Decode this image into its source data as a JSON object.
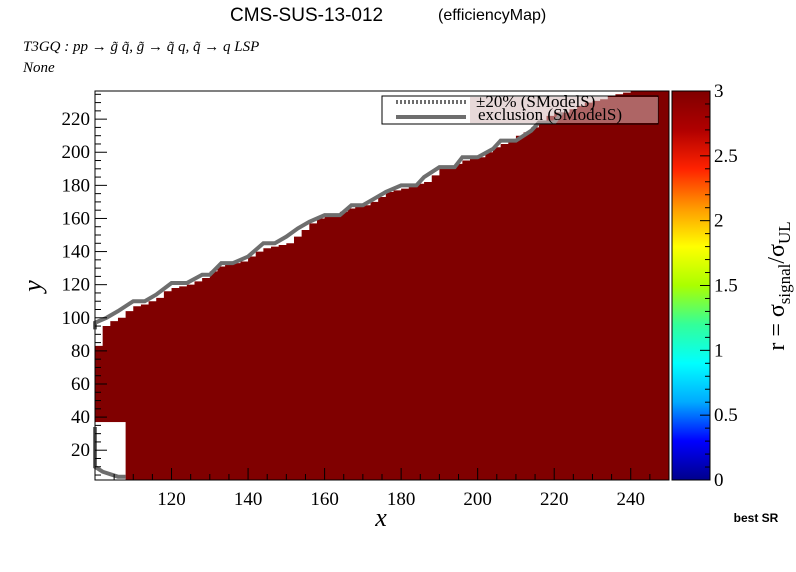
{
  "header": {
    "title": "CMS-SUS-13-012",
    "title_suffix": "(efficiencyMap)",
    "process": "T3GQ : pp  → g̃ q̃, g̃ → q̃ q, q̃ → q LSP",
    "subtitle": "None",
    "footer_note": "best SR"
  },
  "chart_data": {
    "type": "heatmap",
    "xlabel": "x",
    "ylabel": "y",
    "xlim": [
      100,
      250
    ],
    "ylim": [
      2,
      237
    ],
    "xticks": [
      120,
      140,
      160,
      180,
      200,
      220,
      240
    ],
    "yticks": [
      20,
      40,
      60,
      80,
      100,
      120,
      140,
      160,
      180,
      200,
      220
    ],
    "colorbar": {
      "label": "r = σsignal/σUL",
      "label_parts": {
        "main": "r = σ",
        "sub1": "signal",
        "mid": "/σ",
        "sub2": "UL"
      },
      "min": 0,
      "max": 3,
      "ticks": [
        0,
        0.5,
        1,
        1.5,
        2,
        2.5,
        3
      ],
      "tick_labels": [
        "0",
        "0.5",
        "1",
        "1.5",
        "2",
        "2.5",
        "3"
      ],
      "colors": [
        "#00008b",
        "#0000ff",
        "#00aaff",
        "#00ffff",
        "#33ff99",
        "#aaff00",
        "#ffff00",
        "#ff9900",
        "#ff2200",
        "#b00000",
        "#800000"
      ]
    },
    "cell_value": 3,
    "cell_color": "#800000",
    "region_boundary_y_at_x": {
      "x": [
        100,
        102,
        104,
        106,
        108,
        110,
        112,
        114,
        116,
        118,
        120,
        122,
        124,
        126,
        128,
        130,
        132,
        134,
        136,
        138,
        140,
        142,
        144,
        146,
        148,
        150,
        152,
        154,
        156,
        158,
        160,
        162,
        164,
        166,
        168,
        170,
        172,
        174,
        176,
        178,
        180,
        182,
        184,
        186,
        188,
        190,
        192,
        194,
        196,
        198,
        200,
        202,
        204,
        206,
        208,
        210,
        212,
        214,
        216,
        218,
        220,
        222,
        224,
        226,
        228,
        230,
        232,
        234,
        236,
        238,
        240,
        242,
        244,
        246,
        248,
        250
      ],
      "y": [
        83,
        95,
        98,
        100,
        104,
        107,
        108,
        110,
        112,
        116,
        118,
        119,
        120,
        122,
        124,
        128,
        131,
        132,
        133,
        134,
        137,
        140,
        142,
        143,
        144,
        145,
        149,
        153,
        157,
        160,
        162,
        163,
        164,
        166,
        167,
        168,
        170,
        173,
        176,
        177,
        178,
        180,
        181,
        182,
        186,
        190,
        192,
        193,
        195,
        196,
        197,
        200,
        203,
        205,
        208,
        210,
        212,
        215,
        218,
        222,
        224,
        224,
        226,
        228,
        230,
        231,
        232,
        234,
        235,
        236,
        237,
        237,
        237,
        237,
        237,
        237
      ]
    },
    "low_mass_hole": {
      "x": [
        100,
        108
      ],
      "y": [
        2,
        37
      ]
    },
    "legend": {
      "position": "top-right",
      "entries": [
        {
          "label": "±20% (SModelS)",
          "style": "dotted",
          "color": "#6e6e6e"
        },
        {
          "label": "exclusion (SModelS)",
          "style": "solid",
          "color": "#6e6e6e"
        }
      ]
    },
    "exclusion_contour": {
      "x": [
        100,
        100,
        103,
        106,
        110,
        113,
        116,
        120,
        124,
        128,
        130,
        133,
        136,
        140,
        144,
        147,
        150,
        153,
        156,
        160,
        164,
        167,
        170,
        173,
        176,
        180,
        184,
        186,
        190,
        194,
        196,
        200,
        204,
        206,
        210,
        214,
        216,
        220,
        222
      ],
      "y": [
        93,
        97,
        100,
        104,
        110,
        110,
        114,
        121,
        121,
        126,
        126,
        133,
        133,
        137,
        145,
        145,
        149,
        154,
        158,
        162,
        162,
        168,
        168,
        172,
        176,
        180,
        180,
        185,
        191,
        191,
        197,
        197,
        202,
        207,
        207,
        213,
        218,
        218,
        224
      ]
    },
    "exclusion_contour_low": {
      "x": [
        100,
        100,
        102,
        106,
        108
      ],
      "y": [
        34,
        10,
        7,
        4,
        4
      ]
    }
  }
}
